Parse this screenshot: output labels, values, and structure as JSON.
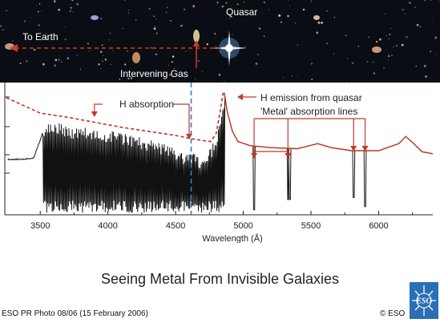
{
  "colors": {
    "space_background": "#0b0d14",
    "earth_line": "#d23a28",
    "quasar_continuum": "#c03323",
    "sightline_blue": "#3d78cc",
    "annotation_red": "#c0392b",
    "spectrum_black": "#111111",
    "logo_blue": "#2a6fb5"
  },
  "space_panel": {
    "label_quasar": "Quasar",
    "label_to_earth": "To Earth",
    "label_intervening_gas": "Intervening Gas",
    "icons": [
      "quasar-star-icon",
      "galaxy-icon",
      "arrow-left-icon",
      "arrow-up-icon"
    ]
  },
  "spectrum_panel": {
    "label_h_absorption": "H absorption",
    "label_h_emission": "H emission from quasar",
    "label_metal_lines": "'Metal' absorption lines"
  },
  "chart_data": {
    "type": "line",
    "xlabel": "Wavelength (Å)",
    "ylabel": "",
    "xlim": [
      3250,
      6400
    ],
    "ylim": [
      0,
      1.3
    ],
    "x_ticks": [
      3500,
      4000,
      4500,
      5000,
      5500,
      6000
    ],
    "intervening_gas_marker_x": 4615,
    "absorption_forest_range": [
      3520,
      4860
    ],
    "continuum": {
      "x": [
        3250,
        3500,
        3700,
        3900,
        4100,
        4300,
        4500,
        4650,
        4760,
        4800,
        4830,
        4850,
        4860,
        4880,
        4920,
        4960,
        5050,
        5200,
        5400,
        5550,
        5650,
        5800,
        6000,
        6150,
        6200,
        6260,
        6320,
        6400
      ],
      "y": [
        1.15,
        1.0,
        0.96,
        0.91,
        0.86,
        0.82,
        0.78,
        0.74,
        0.72,
        0.8,
        1.02,
        1.19,
        1.2,
        1.02,
        0.82,
        0.72,
        0.68,
        0.66,
        0.65,
        0.7,
        0.66,
        0.63,
        0.63,
        0.7,
        0.77,
        0.7,
        0.62,
        0.6
      ]
    },
    "spectrum_peaks": {
      "x": [
        3260,
        3350,
        3450,
        3550,
        3650,
        3750,
        3850,
        3950,
        4050,
        4150,
        4250,
        4350,
        4450,
        4550,
        4650,
        4700,
        4760,
        4800,
        4840,
        4860
      ],
      "y": [
        0.55,
        0.55,
        0.56,
        0.92,
        0.9,
        0.86,
        0.87,
        0.82,
        0.82,
        0.79,
        0.76,
        0.73,
        0.69,
        0.62,
        0.6,
        0.52,
        0.66,
        0.78,
        1.05,
        1.16
      ]
    },
    "metal_lines": [
      {
        "x": 5080,
        "depth": 0.05
      },
      {
        "x": 5330,
        "depth": 0.15
      },
      {
        "x": 5345,
        "depth": 0.15
      },
      {
        "x": 5815,
        "depth": 0.17
      },
      {
        "x": 5900,
        "depth": 0.08
      }
    ],
    "metal_arrow_targets": [
      5080,
      5330,
      5815,
      5900
    ],
    "h_absorption_arrow_targets": [
      3900,
      4600
    ]
  },
  "title": "Seeing Metal From Invisible Galaxies",
  "footer": {
    "credit": "ESO PR Photo 08/06 (15 February 2006)",
    "copyright": "© ESO",
    "logo_text": "ESO"
  }
}
